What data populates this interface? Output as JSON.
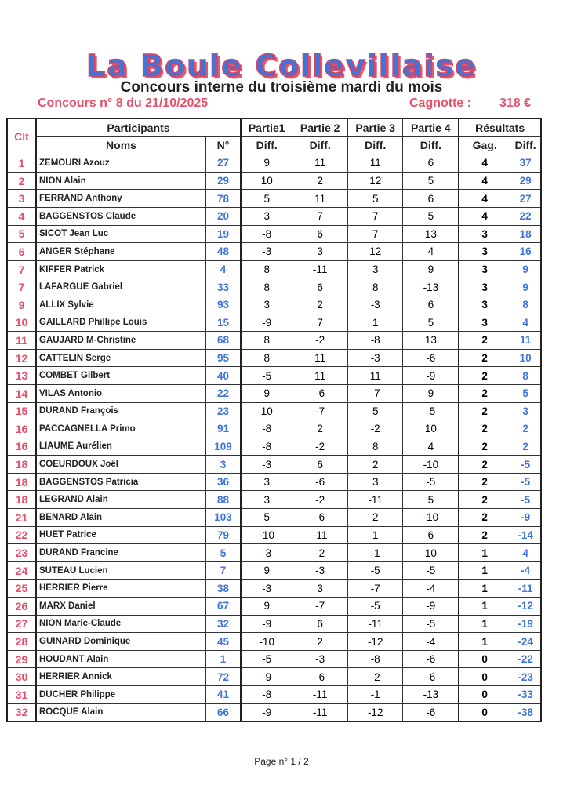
{
  "logo": "La Boule Collevillaise",
  "subtitle": "Concours interne du troisième mardi du mois",
  "concours": "Concours n° 8 du 21/10/2025",
  "cagnotte_label": "Cagnotte :",
  "cagnotte_value": "318 €",
  "headers": {
    "clt": "Clt",
    "participants": "Participants",
    "partie1": "Partie1",
    "partie2": "Partie 2",
    "partie3": "Partie 3",
    "partie4": "Partie 4",
    "resultats": "Résultats",
    "noms": "Noms",
    "num": "N°",
    "diff": "Diff.",
    "gag": "Gag."
  },
  "rows": [
    [
      "1",
      "ZEMOURI Azouz",
      "27",
      "9",
      "11",
      "11",
      "6",
      "4",
      "37"
    ],
    [
      "2",
      "NION Alain",
      "29",
      "10",
      "2",
      "12",
      "5",
      "4",
      "29"
    ],
    [
      "3",
      "FERRAND Anthony",
      "78",
      "5",
      "11",
      "5",
      "6",
      "4",
      "27"
    ],
    [
      "4",
      "BAGGENSTOS Claude",
      "20",
      "3",
      "7",
      "7",
      "5",
      "4",
      "22"
    ],
    [
      "5",
      "SICOT Jean Luc",
      "19",
      "-8",
      "6",
      "7",
      "13",
      "3",
      "18"
    ],
    [
      "6",
      "ANGER Stéphane",
      "48",
      "-3",
      "3",
      "12",
      "4",
      "3",
      "16"
    ],
    [
      "7",
      "KIFFER Patrick",
      "4",
      "8",
      "-11",
      "3",
      "9",
      "3",
      "9"
    ],
    [
      "7",
      "LAFARGUE Gabriel",
      "33",
      "8",
      "6",
      "8",
      "-13",
      "3",
      "9"
    ],
    [
      "9",
      "ALLIX Sylvie",
      "93",
      "3",
      "2",
      "-3",
      "6",
      "3",
      "8"
    ],
    [
      "10",
      "GAILLARD Phillipe Louis",
      "15",
      "-9",
      "7",
      "1",
      "5",
      "3",
      "4"
    ],
    [
      "11",
      "GAUJARD M-Christine",
      "68",
      "8",
      "-2",
      "-8",
      "13",
      "2",
      "11"
    ],
    [
      "12",
      "CATTELIN Serge",
      "95",
      "8",
      "11",
      "-3",
      "-6",
      "2",
      "10"
    ],
    [
      "13",
      "COMBET Gilbert",
      "40",
      "-5",
      "11",
      "11",
      "-9",
      "2",
      "8"
    ],
    [
      "14",
      "VILAS Antonio",
      "22",
      "9",
      "-6",
      "-7",
      "9",
      "2",
      "5"
    ],
    [
      "15",
      "DURAND François",
      "23",
      "10",
      "-7",
      "5",
      "-5",
      "2",
      "3"
    ],
    [
      "16",
      "PACCAGNELLA Primo",
      "91",
      "-8",
      "2",
      "-2",
      "10",
      "2",
      "2"
    ],
    [
      "16",
      "LIAUME Aurélien",
      "109",
      "-8",
      "-2",
      "8",
      "4",
      "2",
      "2"
    ],
    [
      "18",
      "COEURDOUX Joël",
      "3",
      "-3",
      "6",
      "2",
      "-10",
      "2",
      "-5"
    ],
    [
      "18",
      "BAGGENSTOS Patricia",
      "36",
      "3",
      "-6",
      "3",
      "-5",
      "2",
      "-5"
    ],
    [
      "18",
      "LEGRAND Alain",
      "88",
      "3",
      "-2",
      "-11",
      "5",
      "2",
      "-5"
    ],
    [
      "21",
      "BENARD Alain",
      "103",
      "5",
      "-6",
      "2",
      "-10",
      "2",
      "-9"
    ],
    [
      "22",
      "HUET Patrice",
      "79",
      "-10",
      "-11",
      "1",
      "6",
      "2",
      "-14"
    ],
    [
      "23",
      "DURAND Francine",
      "5",
      "-3",
      "-2",
      "-1",
      "10",
      "1",
      "4"
    ],
    [
      "24",
      "SUTEAU Lucien",
      "7",
      "9",
      "-3",
      "-5",
      "-5",
      "1",
      "-4"
    ],
    [
      "25",
      "HERRIER Pierre",
      "38",
      "-3",
      "3",
      "-7",
      "-4",
      "1",
      "-11"
    ],
    [
      "26",
      "MARX Daniel",
      "67",
      "9",
      "-7",
      "-5",
      "-9",
      "1",
      "-12"
    ],
    [
      "27",
      "NION Marie-Claude",
      "32",
      "-9",
      "6",
      "-11",
      "-5",
      "1",
      "-19"
    ],
    [
      "28",
      "GUINARD Dominique",
      "45",
      "-10",
      "2",
      "-12",
      "-4",
      "1",
      "-24"
    ],
    [
      "29",
      "HOUDANT Alain",
      "1",
      "-5",
      "-3",
      "-8",
      "-6",
      "0",
      "-22"
    ],
    [
      "30",
      "HERRIER Annick",
      "72",
      "-9",
      "-6",
      "-2",
      "-6",
      "0",
      "-23"
    ],
    [
      "31",
      "DUCHER Philippe",
      "41",
      "-8",
      "-11",
      "-1",
      "-13",
      "0",
      "-33"
    ],
    [
      "32",
      "ROCQUE Alain",
      "66",
      "-9",
      "-11",
      "-12",
      "-6",
      "0",
      "-38"
    ]
  ],
  "footer": "Page n° 1 / 2"
}
